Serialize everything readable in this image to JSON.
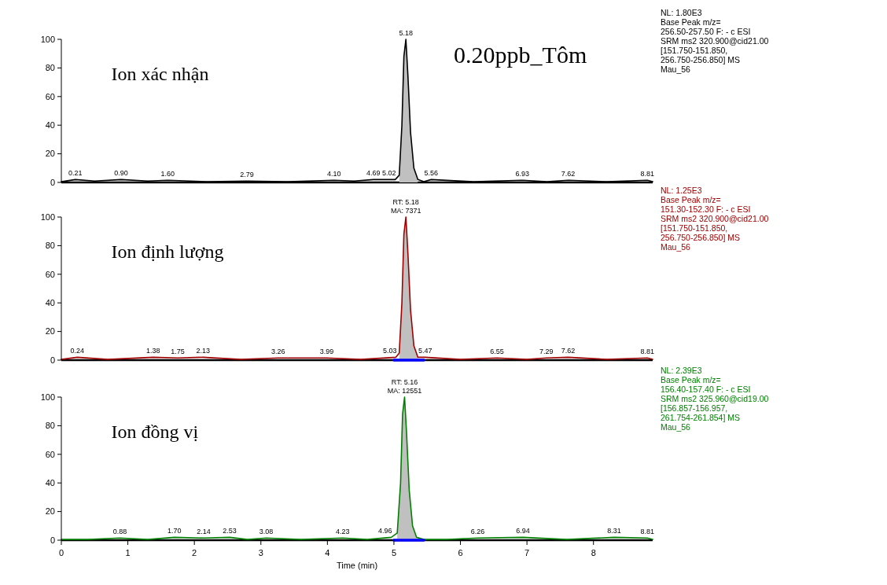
{
  "chart_data": [
    {
      "type": "line",
      "title": "Ion xác nhận",
      "subtitle": "0.20ppb_Tôm",
      "tick_labels": "y",
      "xlim": [
        0,
        8.89
      ],
      "ylim": [
        0,
        100
      ],
      "yticks": [
        0,
        20,
        40,
        60,
        80,
        100
      ],
      "series": [
        {
          "type": "area",
          "color": "#c0c0c0",
          "x": [
            5.08,
            5.12,
            5.15,
            5.18,
            5.21,
            5.25,
            5.3,
            5.36
          ],
          "values": [
            5,
            40,
            88,
            100,
            75,
            35,
            10,
            2
          ]
        },
        {
          "color": "#000000",
          "x": [
            0,
            0.21,
            0.5,
            0.9,
            1.3,
            1.6,
            2.2,
            2.79,
            3.4,
            4.1,
            4.4,
            4.69,
            5.02,
            5.08,
            5.12,
            5.15,
            5.18,
            5.21,
            5.25,
            5.3,
            5.36,
            5.45,
            5.56,
            6.2,
            6.93,
            7.3,
            7.62,
            8.2,
            8.81,
            8.89
          ],
          "values": [
            0.5,
            2,
            1,
            2,
            1,
            1.5,
            0.5,
            1,
            0.5,
            1.5,
            1,
            2,
            2,
            5,
            40,
            88,
            100,
            75,
            35,
            10,
            2,
            0.5,
            2,
            0.5,
            1.5,
            0.5,
            1.5,
            0.5,
            1.5,
            0.5
          ]
        }
      ],
      "annotations": [
        {
          "text": "5.18",
          "x": 5.18,
          "y": 100
        },
        {
          "text": "0.21",
          "x": 0.21,
          "y": 2
        },
        {
          "text": "0.90",
          "x": 0.9,
          "y": 2
        },
        {
          "text": "1.60",
          "x": 1.6,
          "y": 1.5
        },
        {
          "text": "2.79",
          "x": 2.79,
          "y": 1
        },
        {
          "text": "4.10",
          "x": 4.1,
          "y": 1.5
        },
        {
          "text": "4.69",
          "x": 4.69,
          "y": 2
        },
        {
          "text": "5.02",
          "x": 5.02,
          "y": 2
        },
        {
          "text": "5.56",
          "x": 5.56,
          "y": 2
        },
        {
          "text": "6.93",
          "x": 6.93,
          "y": 1.5
        },
        {
          "text": "7.62",
          "x": 7.62,
          "y": 1.5
        },
        {
          "text": "8.81",
          "x": 8.81,
          "y": 1.5
        },
        "NL: 1.80E3\nBase Peak m/z=\n256.50-257.50 F: - c ESI\nSRM ms2 320.900@cid21.00\n[151.750-151.850,\n256.750-256.850] MS\nMau_56"
      ]
    },
    {
      "type": "line",
      "title": "Ion định lượng",
      "tick_labels": "y",
      "xlim": [
        0,
        8.89
      ],
      "ylim": [
        0,
        100
      ],
      "yticks": [
        0,
        20,
        40,
        60,
        80,
        100
      ],
      "series": [
        {
          "type": "area",
          "color": "#c0c0c0",
          "x": [
            5.08,
            5.12,
            5.15,
            5.18,
            5.21,
            5.25,
            5.3,
            5.36
          ],
          "values": [
            5,
            40,
            88,
            100,
            75,
            35,
            10,
            2
          ]
        },
        {
          "color": "#a00000",
          "x": [
            0,
            0.24,
            0.7,
            1.38,
            1.75,
            2.13,
            2.7,
            3.26,
            3.99,
            4.5,
            5.03,
            5.08,
            5.12,
            5.15,
            5.18,
            5.21,
            5.25,
            5.3,
            5.36,
            5.47,
            6.0,
            6.55,
            7.0,
            7.29,
            7.62,
            8.2,
            8.81,
            8.89
          ],
          "values": [
            0.5,
            2,
            0.5,
            2,
            1.5,
            2,
            0.5,
            1.5,
            1.5,
            0.5,
            2,
            5,
            40,
            88,
            100,
            75,
            35,
            10,
            2,
            2,
            0.5,
            1.5,
            0.5,
            1.5,
            2,
            0.5,
            1.5,
            0.5
          ]
        },
        {
          "type": "line",
          "color": "#0000ff",
          "x": [
            5.0,
            5.45
          ],
          "values": [
            0,
            0
          ]
        }
      ],
      "annotations": [
        {
          "text": "RT: 5.18\nMA: 7371",
          "x": 5.18,
          "y": 100
        },
        {
          "text": "0.24",
          "x": 0.24,
          "y": 2
        },
        {
          "text": "1.38",
          "x": 1.38,
          "y": 2
        },
        {
          "text": "1.75",
          "x": 1.75,
          "y": 1.5
        },
        {
          "text": "2.13",
          "x": 2.13,
          "y": 2
        },
        {
          "text": "3.26",
          "x": 3.26,
          "y": 1.5
        },
        {
          "text": "3.99",
          "x": 3.99,
          "y": 1.5
        },
        {
          "text": "5.03",
          "x": 5.03,
          "y": 2
        },
        {
          "text": "5.47",
          "x": 5.47,
          "y": 2
        },
        {
          "text": "6.55",
          "x": 6.55,
          "y": 1.5
        },
        {
          "text": "7.29",
          "x": 7.29,
          "y": 1.5
        },
        {
          "text": "7.62",
          "x": 7.62,
          "y": 2
        },
        {
          "text": "8.81",
          "x": 8.81,
          "y": 1.5
        },
        "NL: 1.25E3\nBase Peak m/z=\n151.30-152.30 F: - c ESI\nSRM ms2 320.900@cid21.00\n[151.750-151.850,\n256.750-256.850] MS\nMau_56"
      ]
    },
    {
      "type": "line",
      "title": "Ion đồng vị",
      "xlabel": "Time (min)",
      "xlim": [
        0,
        8.89
      ],
      "ylim": [
        0,
        100
      ],
      "yticks": [
        0,
        20,
        40,
        60,
        80,
        100
      ],
      "xticks": [
        0,
        1,
        2,
        3,
        4,
        5,
        6,
        7,
        8
      ],
      "series": [
        {
          "type": "area",
          "color": "#c0c0c0",
          "x": [
            5.05,
            5.1,
            5.13,
            5.16,
            5.19,
            5.23,
            5.28,
            5.34
          ],
          "values": [
            5,
            40,
            88,
            100,
            75,
            35,
            10,
            2
          ]
        },
        {
          "color": "#008000",
          "x": [
            0,
            0.4,
            0.88,
            1.3,
            1.7,
            2.14,
            2.53,
            2.8,
            3.08,
            3.6,
            4.23,
            4.6,
            4.96,
            5.05,
            5.1,
            5.13,
            5.16,
            5.19,
            5.23,
            5.28,
            5.34,
            5.45,
            5.8,
            6.26,
            6.94,
            7.6,
            8.31,
            8.81,
            8.89
          ],
          "values": [
            0.5,
            0.5,
            1.5,
            0.5,
            2,
            1.5,
            2,
            0.5,
            1.5,
            0.5,
            1.5,
            0.5,
            2,
            5,
            40,
            88,
            100,
            75,
            35,
            10,
            2,
            0.5,
            0.5,
            1.5,
            2,
            0.5,
            2,
            1.5,
            0.5
          ]
        },
        {
          "type": "line",
          "color": "#0000ff",
          "x": [
            5.0,
            5.45
          ],
          "values": [
            0,
            0
          ]
        }
      ],
      "annotations": [
        {
          "text": "RT: 5.16\nMA: 12551",
          "x": 5.16,
          "y": 100
        },
        {
          "text": "0.88",
          "x": 0.88,
          "y": 1.5
        },
        {
          "text": "1.70",
          "x": 1.7,
          "y": 2
        },
        {
          "text": "2.14",
          "x": 2.14,
          "y": 1.5
        },
        {
          "text": "2.53",
          "x": 2.53,
          "y": 2
        },
        {
          "text": "3.08",
          "x": 3.08,
          "y": 1.5
        },
        {
          "text": "4.23",
          "x": 4.23,
          "y": 1.5
        },
        {
          "text": "4.96",
          "x": 4.96,
          "y": 2
        },
        {
          "text": "6.26",
          "x": 6.26,
          "y": 1.5
        },
        {
          "text": "6.94",
          "x": 6.94,
          "y": 2
        },
        {
          "text": "8.31",
          "x": 8.31,
          "y": 2
        },
        {
          "text": "8.81",
          "x": 8.81,
          "y": 1.5
        },
        "NL: 2.39E3\nBase Peak m/z=\n156.40-157.40 F: - c ESI\nSRM ms2 325.960@cid19.00\n[156.857-156.957,\n261.754-261.854] MS\nMau_56"
      ]
    }
  ]
}
